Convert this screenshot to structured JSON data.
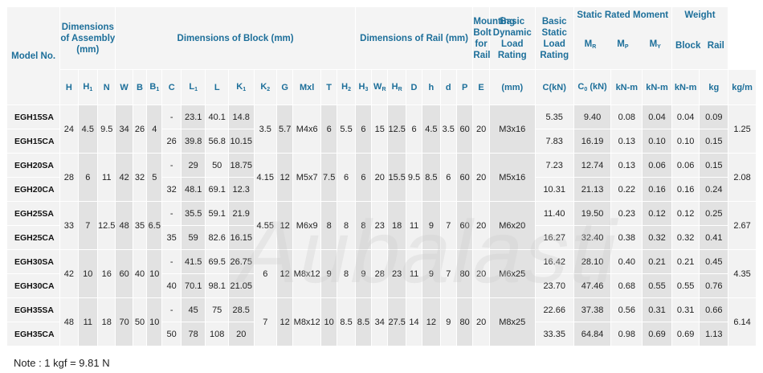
{
  "headers": {
    "model_no": "Model No.",
    "dim_assembly": "Dimensions of Assembly (mm)",
    "dim_block": "Dimensions of Block (mm)",
    "dim_rail": "Dimensions of Rail (mm)",
    "mounting_bolt": "Mounting Bolt for Rail",
    "basic_dynamic": "Basic Dynamic Load Rating",
    "basic_static": "Basic Static Load Rating",
    "static_moment": "Static Rated Moment",
    "weight": "Weight",
    "block": "Block",
    "rail": "Rail",
    "units": {
      "mm": "(mm)",
      "ckn": "C(kN)",
      "c0kn": "(kN)",
      "knm": "kN-m",
      "kg": "kg",
      "kgm": "kg/m"
    }
  },
  "subheaders": [
    "H",
    "H",
    "N",
    "W",
    "B",
    "B",
    "C",
    "L",
    "L",
    "K",
    "K",
    "G",
    "Mxl",
    "T",
    "H",
    "H",
    "W",
    "H",
    "D",
    "h",
    "d",
    "P",
    "E"
  ],
  "rows": [
    {
      "model": "EGH15SA",
      "C": "-",
      "L1": "23.1",
      "L": "40.1",
      "K1": "14.8",
      "Cdyn": "5.35",
      "C0": "9.40",
      "MR": "0.08",
      "MP": "0.04",
      "MY": "0.04",
      "block": "0.09"
    },
    {
      "model": "EGH15CA",
      "C": "26",
      "L1": "39.8",
      "L": "56.8",
      "K1": "10.15",
      "Cdyn": "7.83",
      "C0": "16.19",
      "MR": "0.13",
      "MP": "0.10",
      "MY": "0.10",
      "block": "0.15"
    },
    {
      "model": "EGH20SA",
      "C": "-",
      "L1": "29",
      "L": "50",
      "K1": "18.75",
      "Cdyn": "7.23",
      "C0": "12.74",
      "MR": "0.13",
      "MP": "0.06",
      "MY": "0.06",
      "block": "0.15"
    },
    {
      "model": "EGH20CA",
      "C": "32",
      "L1": "48.1",
      "L": "69.1",
      "K1": "12.3",
      "Cdyn": "10.31",
      "C0": "21.13",
      "MR": "0.22",
      "MP": "0.16",
      "MY": "0.16",
      "block": "0.24"
    },
    {
      "model": "EGH25SA",
      "C": "-",
      "L1": "35.5",
      "L": "59.1",
      "K1": "21.9",
      "Cdyn": "11.40",
      "C0": "19.50",
      "MR": "0.23",
      "MP": "0.12",
      "MY": "0.12",
      "block": "0.25"
    },
    {
      "model": "EGH25CA",
      "C": "35",
      "L1": "59",
      "L": "82.6",
      "K1": "16.15",
      "Cdyn": "16.27",
      "C0": "32.40",
      "MR": "0.38",
      "MP": "0.32",
      "MY": "0.32",
      "block": "0.41"
    },
    {
      "model": "EGH30SA",
      "C": "-",
      "L1": "41.5",
      "L": "69.5",
      "K1": "26.75",
      "Cdyn": "16.42",
      "C0": "28.10",
      "MR": "0.40",
      "MP": "0.21",
      "MY": "0.21",
      "block": "0.45"
    },
    {
      "model": "EGH30CA",
      "C": "40",
      "L1": "70.1",
      "L": "98.1",
      "K1": "21.05",
      "Cdyn": "23.70",
      "C0": "47.46",
      "MR": "0.68",
      "MP": "0.55",
      "MY": "0.55",
      "block": "0.76"
    },
    {
      "model": "EGH35SA",
      "C": "-",
      "L1": "45",
      "L": "75",
      "K1": "28.5",
      "Cdyn": "22.66",
      "C0": "37.38",
      "MR": "0.56",
      "MP": "0.31",
      "MY": "0.31",
      "block": "0.66"
    },
    {
      "model": "EGH35CA",
      "C": "50",
      "L1": "78",
      "L": "108",
      "K1": "20",
      "Cdyn": "33.35",
      "C0": "64.84",
      "MR": "0.98",
      "MP": "0.69",
      "MY": "0.69",
      "block": "1.13"
    }
  ],
  "groups": [
    {
      "H": "24",
      "H1": "4.5",
      "N": "9.5",
      "W": "34",
      "B": "26",
      "B1": "4",
      "K2": "3.5",
      "G": "5.7",
      "Mxl": "M4x6",
      "T": "6",
      "H2": "5.5",
      "H3": "6",
      "WR": "15",
      "HR": "12.5",
      "D": "6",
      "h": "4.5",
      "d": "3.5",
      "P": "60",
      "E": "20",
      "bolt": "M3x16",
      "rail": "1.25"
    },
    {
      "H": "28",
      "H1": "6",
      "N": "11",
      "W": "42",
      "B": "32",
      "B1": "5",
      "K2": "4.15",
      "G": "12",
      "Mxl": "M5x7",
      "T": "7.5",
      "H2": "6",
      "H3": "6",
      "WR": "20",
      "HR": "15.5",
      "D": "9.5",
      "h": "8.5",
      "d": "6",
      "P": "60",
      "E": "20",
      "bolt": "M5x16",
      "rail": "2.08"
    },
    {
      "H": "33",
      "H1": "7",
      "N": "12.5",
      "W": "48",
      "B": "35",
      "B1": "6.5",
      "K2": "4.55",
      "G": "12",
      "Mxl": "M6x9",
      "T": "8",
      "H2": "8",
      "H3": "8",
      "WR": "23",
      "HR": "18",
      "D": "11",
      "h": "9",
      "d": "7",
      "P": "60",
      "E": "20",
      "bolt": "M6x20",
      "rail": "2.67"
    },
    {
      "H": "42",
      "H1": "10",
      "N": "16",
      "W": "60",
      "B": "40",
      "B1": "10",
      "K2": "6",
      "G": "12",
      "Mxl": "M8x12",
      "T": "9",
      "H2": "8",
      "H3": "9",
      "WR": "28",
      "HR": "23",
      "D": "11",
      "h": "9",
      "d": "7",
      "P": "80",
      "E": "20",
      "bolt": "M6x25",
      "rail": "4.35"
    },
    {
      "H": "48",
      "H1": "11",
      "N": "18",
      "W": "70",
      "B": "50",
      "B1": "10",
      "K2": "7",
      "G": "12",
      "Mxl": "M8x12",
      "T": "10",
      "H2": "8.5",
      "H3": "8.5",
      "WR": "34",
      "HR": "27.5",
      "D": "14",
      "h": "12",
      "d": "9",
      "P": "80",
      "E": "20",
      "bolt": "M8x25",
      "rail": "6.14"
    }
  ],
  "watermark": "Aubalasti",
  "note": "Note : 1 kgf = 9.81 N"
}
